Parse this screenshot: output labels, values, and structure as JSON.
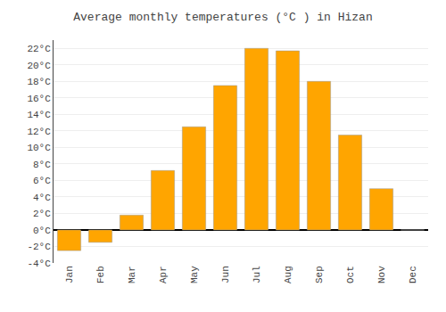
{
  "chart_data": {
    "type": "bar",
    "title": "Average monthly temperatures (°C ) in Hizan",
    "categories": [
      "Jan",
      "Feb",
      "Mar",
      "Apr",
      "May",
      "Jun",
      "Jul",
      "Aug",
      "Sep",
      "Oct",
      "Nov",
      "Dec"
    ],
    "values": [
      -2.5,
      -1.5,
      1.8,
      7.2,
      12.5,
      17.5,
      22.0,
      21.7,
      18.0,
      11.5,
      5.0,
      0.0
    ],
    "color": "#FFA500",
    "ylim": [
      -4,
      23
    ],
    "yticks": [
      {
        "value": -4,
        "label": "-4°C"
      },
      {
        "value": -2,
        "label": "-2°C"
      },
      {
        "value": 0,
        "label": "0°C"
      },
      {
        "value": 2,
        "label": "2°C"
      },
      {
        "value": 4,
        "label": "4°C"
      },
      {
        "value": 6,
        "label": "6°C"
      },
      {
        "value": 8,
        "label": "8°C"
      },
      {
        "value": 10,
        "label": "10°C"
      },
      {
        "value": 12,
        "label": "12°C"
      },
      {
        "value": 14,
        "label": "14°C"
      },
      {
        "value": 16,
        "label": "16°C"
      },
      {
        "value": 18,
        "label": "18°C"
      },
      {
        "value": 20,
        "label": "20°C"
      },
      {
        "value": 22,
        "label": "22°C"
      }
    ],
    "grid": true
  }
}
